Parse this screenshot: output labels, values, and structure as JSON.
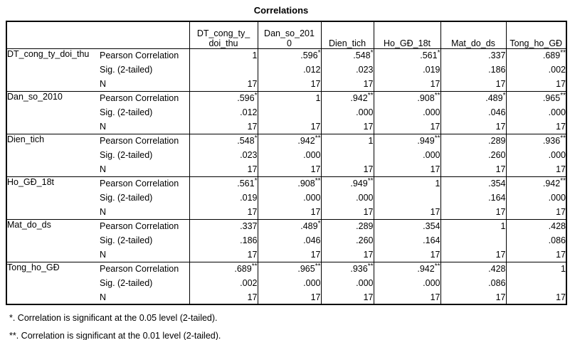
{
  "chart_data": {
    "type": "table",
    "title": "Correlations",
    "row_variables": [
      "DT_cong_ty_doi_thu",
      "Dan_so_2010",
      "Dien_tich",
      "Ho_GĐ_18t",
      "Mat_do_ds",
      "Tong_ho_GĐ"
    ],
    "column_headers": [
      "DT_cong_ty_\ndoi_thu",
      "Dan_so_201\n0",
      "Dien_tich",
      "Ho_GĐ_18t",
      "Mat_do_ds",
      "Tong_ho_GĐ"
    ],
    "statistics": [
      "Pearson Correlation",
      "Sig. (2-tailed)",
      "N"
    ],
    "pearson": [
      [
        "1",
        ".596*",
        ".548*",
        ".561*",
        ".337",
        ".689**"
      ],
      [
        ".596*",
        "1",
        ".942**",
        ".908**",
        ".489*",
        ".965**"
      ],
      [
        ".548*",
        ".942**",
        "1",
        ".949**",
        ".289",
        ".936**"
      ],
      [
        ".561*",
        ".908**",
        ".949**",
        "1",
        ".354",
        ".942**"
      ],
      [
        ".337",
        ".489*",
        ".289",
        ".354",
        "1",
        ".428"
      ],
      [
        ".689**",
        ".965**",
        ".936**",
        ".942**",
        ".428",
        "1"
      ]
    ],
    "sig": [
      [
        "",
        ".012",
        ".023",
        ".019",
        ".186",
        ".002"
      ],
      [
        ".012",
        "",
        ".000",
        ".000",
        ".046",
        ".000"
      ],
      [
        ".023",
        ".000",
        "",
        ".000",
        ".260",
        ".000"
      ],
      [
        ".019",
        ".000",
        ".000",
        "",
        ".164",
        ".000"
      ],
      [
        ".186",
        ".046",
        ".260",
        ".164",
        "",
        ".086"
      ],
      [
        ".002",
        ".000",
        ".000",
        ".000",
        ".086",
        ""
      ]
    ],
    "n": [
      [
        "17",
        "17",
        "17",
        "17",
        "17",
        "17"
      ],
      [
        "17",
        "17",
        "17",
        "17",
        "17",
        "17"
      ],
      [
        "17",
        "17",
        "17",
        "17",
        "17",
        "17"
      ],
      [
        "17",
        "17",
        "17",
        "17",
        "17",
        "17"
      ],
      [
        "17",
        "17",
        "17",
        "17",
        "17",
        "17"
      ],
      [
        "17",
        "17",
        "17",
        "17",
        "17",
        "17"
      ]
    ],
    "footnotes": [
      "*. Correlation is significant at the 0.05 level (2-tailed).",
      "**. Correlation is significant at the 0.01 level (2-tailed)."
    ]
  }
}
